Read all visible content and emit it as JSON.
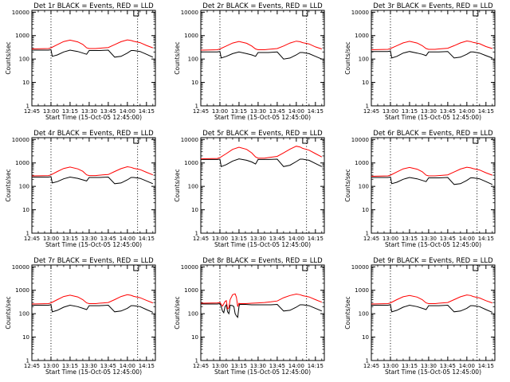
{
  "chart_data": [
    {
      "type": "line",
      "title": "Det 1r BLACK = Events, RED = LLD",
      "xlabel": "Start Time (15-Oct-05 12:45:00)",
      "ylabel": "Counts/sec",
      "series": [
        {
          "name": "Events",
          "color": "#000000",
          "x": [
            0,
            13,
            15,
            16,
            20,
            25,
            30,
            36,
            40,
            43,
            45,
            48,
            50,
            53,
            60,
            65,
            70,
            75,
            78,
            80,
            85,
            90,
            95
          ],
          "y": [
            240,
            240,
            250,
            130,
            150,
            200,
            240,
            210,
            180,
            160,
            230,
            230,
            230,
            230,
            240,
            120,
            130,
            180,
            230,
            230,
            210,
            160,
            120
          ]
        },
        {
          "name": "LLD",
          "color": "#ff0000",
          "x": [
            0,
            13,
            15,
            20,
            25,
            30,
            36,
            40,
            43,
            45,
            50,
            53,
            60,
            65,
            70,
            75,
            78,
            80,
            85,
            90,
            95
          ],
          "y": [
            270,
            280,
            300,
            410,
            560,
            640,
            540,
            420,
            300,
            280,
            280,
            290,
            310,
            410,
            550,
            660,
            620,
            570,
            500,
            380,
            300
          ]
        }
      ],
      "annotations": {
        "vlines": [
          15,
          83
        ],
        "box_label": "C"
      }
    },
    {
      "type": "line",
      "title": "Det 2r BLACK = Events, RED = LLD",
      "xlabel": "Start Time (15-Oct-05 12:45:00)",
      "ylabel": "Counts/sec",
      "series": [
        {
          "name": "Events",
          "color": "#000000",
          "x": [
            0,
            13,
            15,
            16,
            20,
            25,
            30,
            36,
            40,
            43,
            45,
            48,
            50,
            53,
            60,
            65,
            70,
            75,
            78,
            80,
            85,
            90,
            95
          ],
          "y": [
            200,
            200,
            210,
            110,
            130,
            170,
            200,
            170,
            150,
            130,
            190,
            190,
            190,
            190,
            200,
            100,
            110,
            150,
            190,
            190,
            170,
            130,
            100
          ]
        },
        {
          "name": "LLD",
          "color": "#ff0000",
          "x": [
            0,
            13,
            15,
            20,
            25,
            30,
            36,
            40,
            43,
            45,
            50,
            53,
            60,
            65,
            70,
            75,
            78,
            80,
            85,
            90,
            95
          ],
          "y": [
            240,
            250,
            270,
            360,
            480,
            560,
            470,
            360,
            270,
            250,
            250,
            260,
            280,
            360,
            480,
            580,
            550,
            500,
            440,
            330,
            270
          ]
        }
      ],
      "annotations": {
        "vlines": [
          15,
          83
        ],
        "box_label": "C"
      }
    },
    {
      "type": "line",
      "title": "Det 3r BLACK = Events, RED = LLD",
      "xlabel": "Start Time (15-Oct-05 12:45:00)",
      "ylabel": "Counts/sec",
      "series": [
        {
          "name": "Events",
          "color": "#000000",
          "x": [
            0,
            13,
            15,
            16,
            20,
            25,
            30,
            36,
            40,
            43,
            45,
            48,
            50,
            53,
            60,
            65,
            70,
            75,
            78,
            80,
            85,
            90,
            95
          ],
          "y": [
            210,
            210,
            220,
            110,
            130,
            180,
            210,
            180,
            160,
            140,
            200,
            200,
            200,
            200,
            210,
            110,
            120,
            160,
            200,
            200,
            180,
            140,
            110
          ]
        },
        {
          "name": "LLD",
          "color": "#ff0000",
          "x": [
            0,
            13,
            15,
            20,
            25,
            30,
            36,
            40,
            43,
            45,
            50,
            53,
            60,
            65,
            70,
            75,
            78,
            80,
            85,
            90,
            95
          ],
          "y": [
            250,
            260,
            280,
            370,
            490,
            570,
            480,
            370,
            280,
            260,
            260,
            270,
            290,
            370,
            490,
            590,
            560,
            510,
            450,
            340,
            280
          ]
        }
      ],
      "annotations": {
        "vlines": [
          15,
          83
        ],
        "box_label": "C"
      }
    },
    {
      "type": "line",
      "title": "Det 4r BLACK = Events, RED = LLD",
      "xlabel": "Start Time (15-Oct-05 12:45:00)",
      "ylabel": "Counts/sec",
      "series": [
        {
          "name": "Events",
          "color": "#000000",
          "x": [
            0,
            13,
            15,
            16,
            20,
            25,
            30,
            36,
            40,
            43,
            45,
            48,
            50,
            53,
            60,
            65,
            70,
            75,
            78,
            80,
            85,
            90,
            95
          ],
          "y": [
            250,
            250,
            260,
            140,
            160,
            210,
            250,
            220,
            190,
            170,
            240,
            240,
            240,
            240,
            250,
            130,
            140,
            190,
            240,
            240,
            220,
            170,
            130
          ]
        },
        {
          "name": "LLD",
          "color": "#ff0000",
          "x": [
            0,
            13,
            15,
            20,
            25,
            30,
            36,
            40,
            43,
            45,
            50,
            53,
            60,
            65,
            70,
            75,
            78,
            80,
            85,
            90,
            95
          ],
          "y": [
            280,
            290,
            310,
            430,
            580,
            670,
            560,
            440,
            310,
            290,
            290,
            300,
            320,
            430,
            570,
            690,
            650,
            590,
            520,
            400,
            310
          ]
        }
      ],
      "annotations": {
        "vlines": [
          15,
          83
        ],
        "box_label": "C"
      }
    },
    {
      "type": "line",
      "title": "Det 5r BLACK = Events, RED = LLD",
      "xlabel": "Start Time (15-Oct-05 12:45:00)",
      "ylabel": "Counts/sec",
      "series": [
        {
          "name": "Events",
          "color": "#000000",
          "x": [
            0,
            13,
            15,
            16,
            20,
            25,
            30,
            36,
            40,
            43,
            45,
            48,
            50,
            53,
            60,
            65,
            70,
            75,
            78,
            80,
            85,
            90,
            95
          ],
          "y": [
            1400,
            1400,
            1450,
            700,
            850,
            1200,
            1500,
            1300,
            1100,
            900,
            1400,
            1400,
            1400,
            1400,
            1450,
            700,
            800,
            1150,
            1450,
            1450,
            1300,
            950,
            700
          ]
        },
        {
          "name": "LLD",
          "color": "#ff0000",
          "x": [
            0,
            13,
            15,
            20,
            25,
            30,
            36,
            40,
            43,
            45,
            50,
            53,
            60,
            65,
            70,
            75,
            78,
            80,
            85,
            90,
            95
          ],
          "y": [
            1500,
            1550,
            1700,
            2500,
            3800,
            4700,
            3800,
            2700,
            1800,
            1600,
            1600,
            1700,
            1900,
            2700,
            3900,
            5200,
            4800,
            4200,
            3500,
            2500,
            1800
          ]
        }
      ],
      "annotations": {
        "vlines": [
          15,
          83
        ],
        "box_label": "C"
      }
    },
    {
      "type": "line",
      "title": "Det 6r BLACK = Events, RED = LLD",
      "xlabel": "Start Time (15-Oct-05 12:45:00)",
      "ylabel": "Counts/sec",
      "series": [
        {
          "name": "Events",
          "color": "#000000",
          "x": [
            0,
            13,
            15,
            16,
            20,
            25,
            30,
            36,
            40,
            43,
            45,
            48,
            50,
            53,
            60,
            65,
            70,
            75,
            78,
            80,
            85,
            90,
            95
          ],
          "y": [
            240,
            240,
            250,
            130,
            150,
            200,
            240,
            210,
            180,
            160,
            230,
            230,
            230,
            230,
            240,
            120,
            130,
            180,
            230,
            230,
            210,
            160,
            120
          ]
        },
        {
          "name": "LLD",
          "color": "#ff0000",
          "x": [
            0,
            13,
            15,
            20,
            25,
            30,
            36,
            40,
            43,
            45,
            50,
            53,
            60,
            65,
            70,
            75,
            78,
            80,
            85,
            90,
            95
          ],
          "y": [
            270,
            280,
            300,
            410,
            560,
            640,
            540,
            420,
            300,
            280,
            280,
            290,
            310,
            410,
            550,
            660,
            620,
            570,
            500,
            380,
            300
          ]
        }
      ],
      "annotations": {
        "vlines": [
          15,
          83
        ],
        "box_label": "C"
      }
    },
    {
      "type": "line",
      "title": "Det 7r BLACK = Events, RED = LLD",
      "xlabel": "Start Time (15-Oct-05 12:45:00)",
      "ylabel": "Counts/sec",
      "series": [
        {
          "name": "Events",
          "color": "#000000",
          "x": [
            0,
            13,
            15,
            16,
            20,
            25,
            30,
            36,
            40,
            43,
            45,
            48,
            50,
            53,
            60,
            65,
            70,
            75,
            78,
            80,
            85,
            90,
            95
          ],
          "y": [
            230,
            230,
            240,
            120,
            140,
            190,
            230,
            200,
            170,
            150,
            220,
            220,
            220,
            220,
            230,
            120,
            130,
            170,
            220,
            220,
            200,
            150,
            115
          ]
        },
        {
          "name": "LLD",
          "color": "#ff0000",
          "x": [
            0,
            13,
            15,
            20,
            25,
            30,
            36,
            40,
            43,
            45,
            50,
            53,
            60,
            65,
            70,
            75,
            78,
            80,
            85,
            90,
            95
          ],
          "y": [
            260,
            270,
            290,
            400,
            540,
            620,
            520,
            400,
            290,
            270,
            270,
            280,
            300,
            400,
            540,
            650,
            610,
            550,
            480,
            370,
            290
          ]
        }
      ],
      "annotations": {
        "vlines": [
          15,
          83
        ],
        "box_label": "C"
      }
    },
    {
      "type": "line",
      "title": "Det 8r BLACK = Events, RED = LLD",
      "xlabel": "Start Time (15-Oct-05 12:45:00)",
      "ylabel": "Counts/sec",
      "series": [
        {
          "name": "Events",
          "color": "#000000",
          "x": [
            0,
            13,
            15,
            16,
            17,
            18,
            19,
            20,
            21,
            22,
            23,
            25,
            26,
            27,
            28,
            29,
            30,
            30.5,
            35,
            40,
            45,
            50,
            55,
            60,
            65,
            70,
            75,
            78,
            80,
            85,
            90,
            95
          ],
          "y": [
            260,
            260,
            270,
            200,
            130,
            110,
            200,
            240,
            120,
            100,
            230,
            220,
            200,
            100,
            80,
            70,
            200,
            250,
            250,
            240,
            240,
            240,
            240,
            250,
            130,
            140,
            190,
            240,
            240,
            220,
            170,
            130
          ]
        },
        {
          "name": "LLD",
          "color": "#ff0000",
          "x": [
            0,
            13,
            15,
            17,
            19,
            20,
            21,
            22,
            23,
            25,
            27,
            28,
            29,
            30,
            30.5,
            35,
            40,
            45,
            50,
            55,
            60,
            65,
            70,
            75,
            78,
            80,
            85,
            90,
            95
          ],
          "y": [
            280,
            290,
            300,
            210,
            330,
            360,
            160,
            180,
            400,
            650,
            700,
            500,
            200,
            280,
            270,
            270,
            280,
            290,
            300,
            320,
            350,
            480,
            600,
            690,
            650,
            590,
            520,
            400,
            310
          ]
        }
      ],
      "annotations": {
        "vlines": [
          15,
          83
        ],
        "box_label": "C"
      }
    },
    {
      "type": "line",
      "title": "Det 9r BLACK = Events, RED = LLD",
      "xlabel": "Start Time (15-Oct-05 12:45:00)",
      "ylabel": "Counts/sec",
      "series": [
        {
          "name": "Events",
          "color": "#000000",
          "x": [
            0,
            13,
            15,
            16,
            20,
            25,
            30,
            36,
            40,
            43,
            45,
            48,
            50,
            53,
            60,
            65,
            70,
            75,
            78,
            80,
            85,
            90,
            95
          ],
          "y": [
            230,
            230,
            240,
            120,
            140,
            190,
            230,
            200,
            170,
            150,
            220,
            220,
            220,
            220,
            230,
            120,
            130,
            170,
            220,
            220,
            200,
            150,
            115
          ]
        },
        {
          "name": "LLD",
          "color": "#ff0000",
          "x": [
            0,
            13,
            15,
            20,
            25,
            30,
            36,
            40,
            43,
            45,
            50,
            53,
            60,
            65,
            70,
            75,
            78,
            80,
            85,
            90,
            95
          ],
          "y": [
            260,
            270,
            290,
            400,
            530,
            600,
            510,
            400,
            290,
            270,
            270,
            280,
            300,
            400,
            530,
            630,
            600,
            540,
            470,
            360,
            290
          ]
        }
      ],
      "annotations": {
        "vlines": [
          15,
          83
        ],
        "box_label": "C"
      }
    }
  ],
  "axes": {
    "x_ticks": [
      {
        "label": "12:45",
        "minutes": 0
      },
      {
        "label": "13:00",
        "minutes": 15
      },
      {
        "label": "13:15",
        "minutes": 30
      },
      {
        "label": "13:30",
        "minutes": 45
      },
      {
        "label": "13:45",
        "minutes": 60
      },
      {
        "label": "14:00",
        "minutes": 75
      },
      {
        "label": "14:15",
        "minutes": 90
      }
    ],
    "y_ticks": [
      {
        "label": "1",
        "value": 1
      },
      {
        "label": "10",
        "value": 10
      },
      {
        "label": "100",
        "value": 100
      },
      {
        "label": "1000",
        "value": 1000
      },
      {
        "label": "10000",
        "value": 10000
      }
    ],
    "x_range": [
      0,
      97
    ],
    "y_range": [
      1,
      12000
    ],
    "y_scale": "log"
  }
}
